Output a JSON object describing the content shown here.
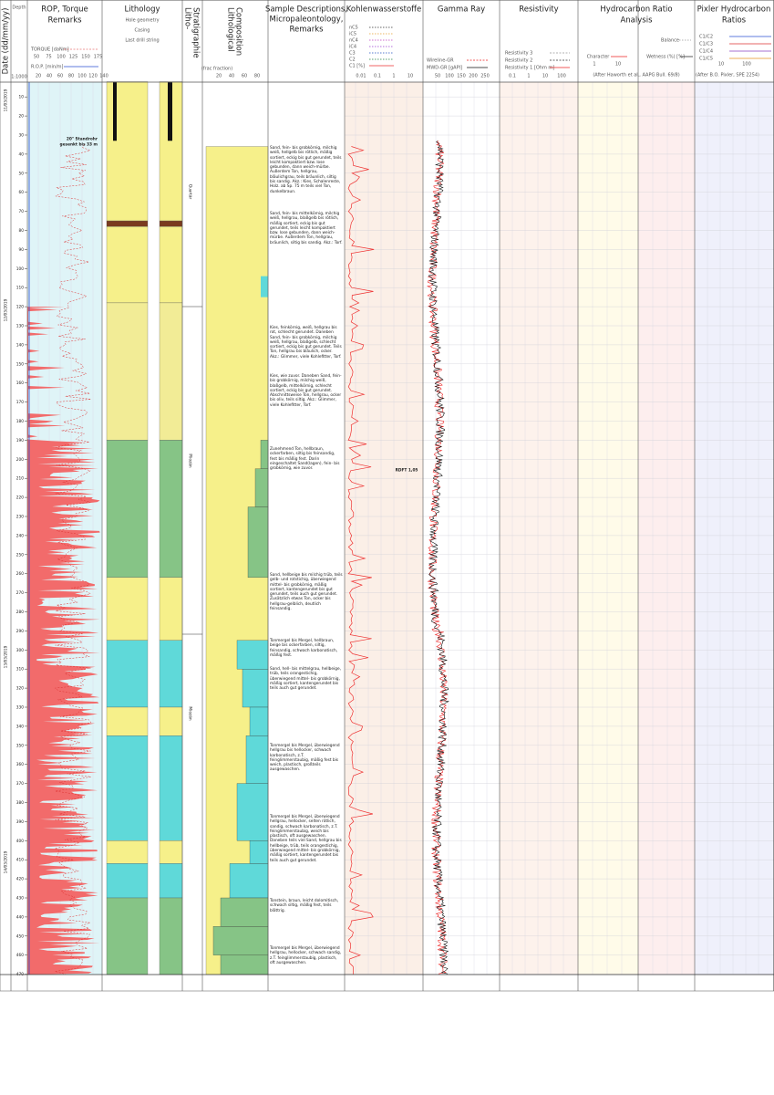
{
  "header": {
    "date": "Date (dd/mm/yy)",
    "depth": "Depth",
    "scale": "1:1000",
    "rop_title": [
      "ROP, Torque",
      "Remarks"
    ],
    "torque_legend": "TORQUE [daNm]",
    "rop_legend": "R.O.P. [min/m]",
    "torque_scale": [
      "50",
      "75",
      "100",
      "125",
      "150",
      "175"
    ],
    "rop_scale": [
      "20",
      "40",
      "60",
      "80",
      "100",
      "120",
      "140"
    ],
    "lithology_title": "Lithology",
    "lithology_sub": [
      "Hole geometry",
      "Casing",
      "Last drill string"
    ],
    "strat_title": [
      "Litho-",
      "Stratigraphie"
    ],
    "comp_title": [
      "Lithological",
      "Composition"
    ],
    "comp_unit": "(frac fraction)",
    "comp_scale": [
      "20",
      "40",
      "60",
      "80"
    ],
    "sample_title": [
      "Sample Descriptions,",
      "Micropaleontology,",
      "Remarks"
    ],
    "kw_title": "Kohlenwasserstoffe",
    "kw_legend": [
      "nC5",
      "iC5",
      "nC4",
      "iC4",
      "C3",
      "C2",
      "C1 [%]"
    ],
    "kw_scale": [
      "0.01",
      "0.1",
      "1",
      "10"
    ],
    "gr_title": "Gamma Ray",
    "gr_legend": [
      "Wireline-GR",
      "MWD-GR [gAPI]"
    ],
    "gr_scale": [
      "50",
      "100",
      "150",
      "200",
      "250"
    ],
    "res_title": "Resistivity",
    "res_legend": [
      "Resistivity 3",
      "Resistivity 2",
      "Resistivity 1 [Ohm m]"
    ],
    "res_scale": [
      "0.1",
      "1",
      "10",
      "100"
    ],
    "hc_title": [
      "Hydrocarbon Ratio",
      "Analysis"
    ],
    "hc_legend": [
      "Balance",
      "Character",
      "Wetness (%) [%]"
    ],
    "hc_scale": [
      "1",
      "10"
    ],
    "hc_ref": "(After Haworth et al., AAPG Bull. 69/8)",
    "px_title": [
      "Pixler Hydrocarbon",
      "Ratios"
    ],
    "px_legend": [
      "C1/C2",
      "C1/C3",
      "C1/C4",
      "C1/C5"
    ],
    "px_scale": [
      "10",
      "100"
    ],
    "px_ref": "(After B.O. Pixler, SPE 2254)"
  },
  "depths": [
    "10",
    "20",
    "30",
    "40",
    "50",
    "60",
    "70",
    "80",
    "90",
    "100",
    "110",
    "120",
    "130",
    "140",
    "150",
    "160",
    "170",
    "180",
    "190",
    "200",
    "210",
    "220",
    "230",
    "240",
    "250",
    "260",
    "270",
    "280",
    "290",
    "300",
    "310",
    "320",
    "330",
    "340",
    "350",
    "360",
    "370",
    "380",
    "390",
    "400",
    "410",
    "420",
    "430",
    "440",
    "450",
    "460",
    "470"
  ],
  "dates": [
    "11/03/2019",
    "12/03/2019",
    "13/03/2019",
    "14/03/2019"
  ],
  "strat": [
    "Quartär",
    "Pliozän",
    "Miozän"
  ],
  "remarks": [
    "20\" Standrohr",
    "gesenkt bis 33 m",
    "RDFT 1,05"
  ],
  "descriptions": [
    "Sand, fein- bis grobkörnig, milchig weiß, hellgelb bis rötlich, mäßig sortiert, eckig bis gut gerundet, teils leicht kompaktiert bzw. lose gebunden, dann weich-mürbe. Außerdem Ton, hellgrau, bläulichgrau, teils bräunlich, siltig bis sandig. Akz.: Kies, Schalenreste, Holz. ab Sp. 75 m teils viel Ton, dunkelbraun.",
    "Sand, fein- bis mittelkörnig, milchig weiß, hellgrau, blaßgelb bis rötlich, mäßig sortiert, eckig bis gut gerundet, teils leicht kompaktiert bzw. lose gebunden, dann weich-mürbe. Außerdem Ton, hellgrau, bräunlich, siltig bis sandig. Akz.: Torf.",
    "Kies, feinkörnig, weiß, hellgrau bis rot, schlecht gerundet. Daneben Sand, fein- bis grobkörnig, milchig weiß, hellgrau, blaßgelb, schlecht sortiert, eckig bis gut gerundet. Teils Ton, hellgrau bis bläulich, ocker. Akz.: Glimmer, viele Kohlefitter, Torf.",
    "Kies, wie zuvor. Daneben Sand, fein- bis grobkörnig, milchig weiß, blaßgelb, mittelkörnig, schlecht sortiert, eckig bis gut gerundet. Abschnittsweise Ton, hellgrau, ocker bis oliv, teils siltig. Akz.: Glimmer, viele Kohlefitter, Torf.",
    "Zunehmend Ton, hellbraun, ockerfarben, siltig bis feinsandig, fest bis mäßig fest. Darin eingeschaltet Sand(lagen), fein- bis grobkörnig, wie zuvor.",
    "Sand, hellbeige bis milchig trüb, teils gelb- und rotstichig, überwiegend mittel- bis grobkörnig, mäßig sortiert, kantengerundet bis gut gerundet, teils auch gut gerundet. Zusätzlich etwas Ton, ocker bis hellgrau-gelblich, deutlich feinsandig.",
    "Tonmergel bis Mergel, hellbraun, beige bis ockerfarben, siltig, feinsandig, schwach karbonatisch, mäßig fest.",
    "Sand, hell- bis mittelgrau, hellbeige, trüb, teils orangestichig, überwiegend mittel- bis grobkörnig, mäßig sortiert, kantengerundet bis teils auch gut gerundet.",
    "Tonmergel bis Mergel, überwiegend hellgrau bis hellocker, schwach karbonatisch, z.T. feinglimmerstaubig, mäßig fest bis weich, plastisch, großteils ausgewaschen.",
    "Tonmergel bis Mergel, überwiegend hellgrau, hellocker, selten rötlich, sandig, schwach karbonatisch, z.T. feinglimmerstaubig, weich bis plastisch, oft ausgewaschen. Daneben teils viel Sand, hellgrau bis hellbeige, trüb, teils orangestichig, überwiegend mittel- bis grobkörnig, mäßig sortiert, kantengerundet bis teils auch gut gerundet.",
    "Tonstein, braun, leicht dolomitisch, schwach siltig, mäßig fest, teils blättrig.",
    "Tonmergel bis Mergel, überwiegend hellgrau, hellocker, schwach sandig, z.T. feinglimmerstaubig, plastisch, oft ausgewaschen."
  ]
}
